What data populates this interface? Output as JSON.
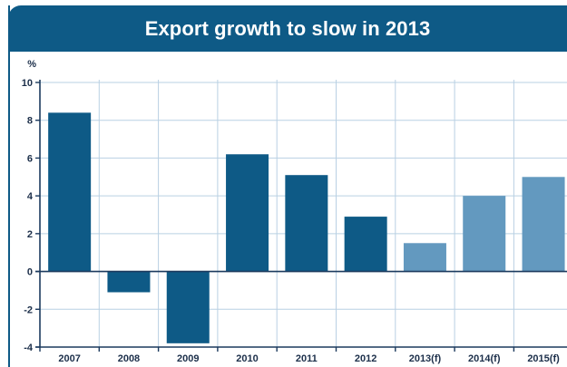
{
  "chart_data": {
    "type": "bar",
    "title": "Export growth to slow in 2013",
    "ylabel": "%",
    "xlabel": "",
    "ylim": [
      -4,
      10
    ],
    "yticks": [
      10,
      8,
      6,
      4,
      2,
      0,
      -2,
      -4
    ],
    "categories": [
      "2007",
      "2008",
      "2009",
      "2010",
      "2011",
      "2012",
      "2013(f)",
      "2014(f)",
      "2015(f)"
    ],
    "values": [
      8.4,
      -1.1,
      -3.8,
      6.2,
      5.1,
      2.9,
      1.5,
      4.0,
      5.0
    ],
    "forecast": [
      false,
      false,
      false,
      false,
      false,
      false,
      true,
      true,
      true
    ],
    "grid": true,
    "colors": {
      "actual": "#0e5a86",
      "forecast": "#6399bf",
      "grid": "#b9d0e3",
      "axis": "#1c3a5e",
      "title_bg": "#0e5a86"
    }
  }
}
